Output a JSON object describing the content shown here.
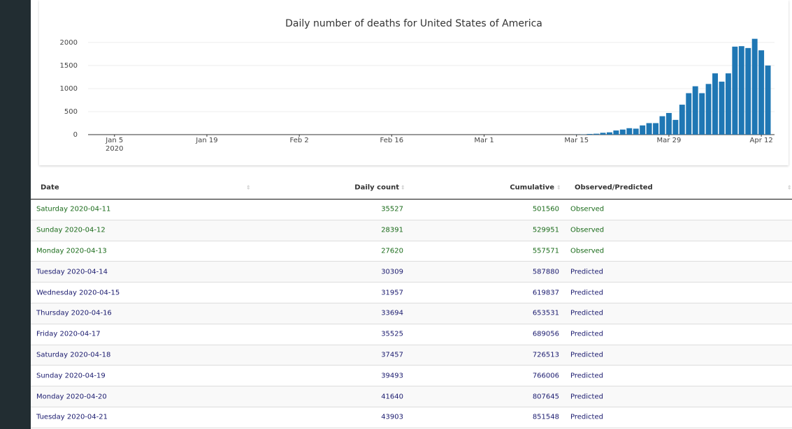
{
  "chart_data": {
    "type": "bar",
    "title": "Daily number of deaths for United States of America",
    "x": [
      "2020-03-15",
      "2020-03-16",
      "2020-03-17",
      "2020-03-18",
      "2020-03-19",
      "2020-03-20",
      "2020-03-21",
      "2020-03-22",
      "2020-03-23",
      "2020-03-24",
      "2020-03-25",
      "2020-03-26",
      "2020-03-27",
      "2020-03-28",
      "2020-03-29",
      "2020-03-30",
      "2020-03-31",
      "2020-04-01",
      "2020-04-02",
      "2020-04-03",
      "2020-04-04",
      "2020-04-05",
      "2020-04-06",
      "2020-04-07",
      "2020-04-08",
      "2020-04-09",
      "2020-04-10",
      "2020-04-11",
      "2020-04-12",
      "2020-04-13"
    ],
    "values": [
      2,
      5,
      15,
      20,
      40,
      50,
      90,
      110,
      140,
      130,
      200,
      250,
      250,
      400,
      470,
      320,
      650,
      900,
      1050,
      900,
      1100,
      1330,
      1150,
      1330,
      1910,
      1920,
      1880,
      2080,
      1830,
      1500
    ],
    "color": "#1f77b4",
    "xlim": [
      "2020-01-01",
      "2020-04-14"
    ],
    "xticks": [
      {
        "value": "2020-01-05",
        "label": "Jan 5\n2020"
      },
      {
        "value": "2020-01-19",
        "label": "Jan 19"
      },
      {
        "value": "2020-02-02",
        "label": "Feb 2"
      },
      {
        "value": "2020-02-16",
        "label": "Feb 16"
      },
      {
        "value": "2020-03-01",
        "label": "Mar 1"
      },
      {
        "value": "2020-03-15",
        "label": "Mar 15"
      },
      {
        "value": "2020-03-29",
        "label": "Mar 29"
      },
      {
        "value": "2020-04-12",
        "label": "Apr 12"
      }
    ],
    "ylim": [
      0,
      2150
    ],
    "yticks": [
      0,
      500,
      1000,
      1500,
      2000
    ],
    "grid": true
  },
  "table": {
    "columns": [
      "Date",
      "Daily count",
      "Cumulative",
      "Observed/Predicted"
    ],
    "rows": [
      [
        "Saturday 2020-04-11",
        35527,
        501560,
        "Observed"
      ],
      [
        "Sunday 2020-04-12",
        28391,
        529951,
        "Observed"
      ],
      [
        "Monday 2020-04-13",
        27620,
        557571,
        "Observed"
      ],
      [
        "Tuesday 2020-04-14",
        30309,
        587880,
        "Predicted"
      ],
      [
        "Wednesday 2020-04-15",
        31957,
        619837,
        "Predicted"
      ],
      [
        "Thursday 2020-04-16",
        33694,
        653531,
        "Predicted"
      ],
      [
        "Friday 2020-04-17",
        35525,
        689056,
        "Predicted"
      ],
      [
        "Saturday 2020-04-18",
        37457,
        726513,
        "Predicted"
      ],
      [
        "Sunday 2020-04-19",
        39493,
        766006,
        "Predicted"
      ],
      [
        "Monday 2020-04-20",
        41640,
        807645,
        "Predicted"
      ],
      [
        "Tuesday 2020-04-21",
        43903,
        851548,
        "Predicted"
      ]
    ],
    "row_colors": [
      "#1a6b1a",
      "#1a6b1a",
      "#1a6b1a",
      "#1a1a6e",
      "#1a1a6e",
      "#1a1a6e",
      "#1a1a6e",
      "#1a1a6e",
      "#1a1a6e",
      "#1a1a6e",
      "#1a1a6e"
    ]
  }
}
